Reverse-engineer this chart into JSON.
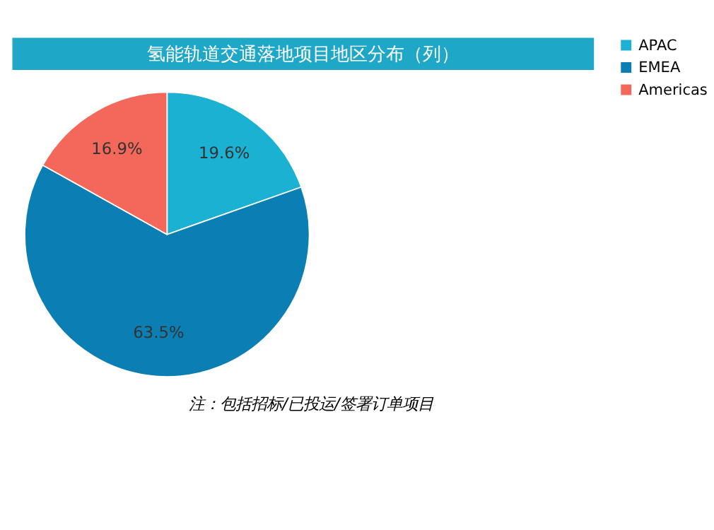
{
  "chart_data": {
    "type": "pie",
    "title": "氢能轨道交通落地项目地区分布（列）",
    "categories": [
      "APAC",
      "EMEA",
      "Americas"
    ],
    "values": [
      19.6,
      63.5,
      16.9
    ],
    "value_labels": [
      "19.6%",
      "63.5%",
      "16.9%"
    ],
    "colors": [
      "#1bb1d2",
      "#0b7fb4",
      "#f3685a"
    ],
    "legend": "top right",
    "annotations": [
      "注：包括招标/已投运/签署订单项目"
    ]
  }
}
